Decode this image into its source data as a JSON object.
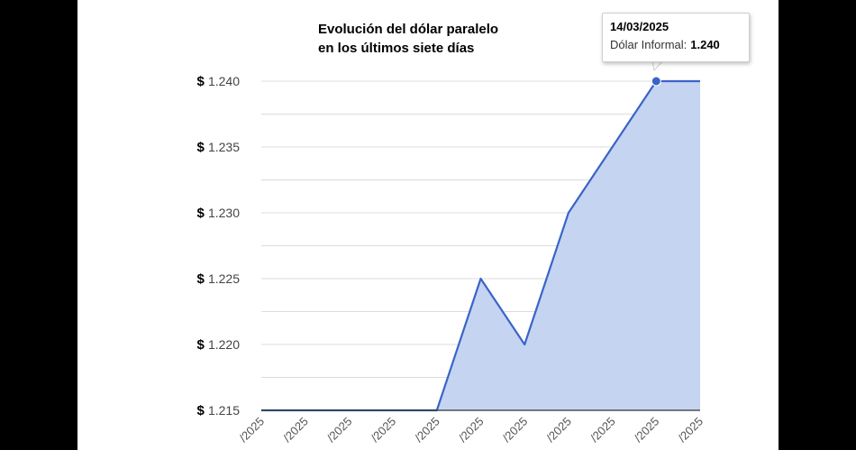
{
  "chart_data": {
    "type": "area",
    "title_lines": [
      "Evolución del dólar paralelo",
      "en los últimos siete días"
    ],
    "x": [
      "/2025",
      "/2025",
      "/2025",
      "/2025",
      "/2025",
      "/2025",
      "/2025",
      "/2025",
      "/2025",
      "/2025",
      "/2025"
    ],
    "series": [
      {
        "name": "Dólar Informal",
        "values": [
          1215,
          1215,
          1215,
          1215,
          1215,
          1225,
          1220,
          1230,
          1235,
          1240,
          1240
        ]
      }
    ],
    "ylim": [
      1215,
      1240
    ],
    "yticks": [
      1215,
      1220,
      1225,
      1230,
      1235,
      1240
    ],
    "ytick_labels": [
      "1.215",
      "1.220",
      "1.225",
      "1.230",
      "1.235",
      "1.240"
    ],
    "y_prefix": "$",
    "grid": true,
    "colors": {
      "line": "#3a64c8",
      "fill": "#c5d4f1",
      "grid": "#dcdcdc"
    },
    "highlight_index": 9,
    "tooltip": {
      "date": "14/03/2025",
      "label": "Dólar Informal:",
      "value": "1.240"
    }
  }
}
